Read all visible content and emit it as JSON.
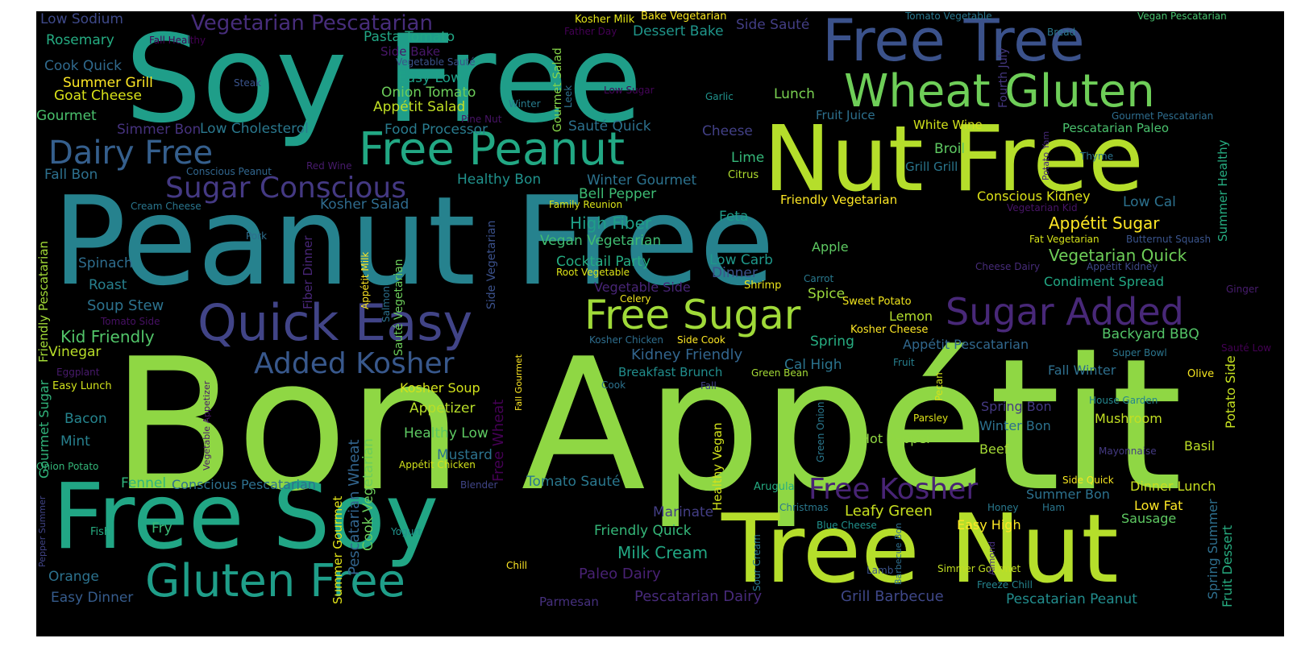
{
  "words": [
    {
      "text": "Bon Appétit",
      "color": "#8fd744"
    },
    {
      "text": "Peanut Free",
      "color": "#26828e"
    },
    {
      "text": "Soy Free",
      "color": "#1f9e89"
    },
    {
      "text": "Nut Free",
      "color": "#b5de2b"
    },
    {
      "text": "Tree Nut",
      "color": "#b5de2b"
    },
    {
      "text": "Free Soy",
      "color": "#21a685"
    },
    {
      "text": "Free Tree",
      "color": "#3b528b"
    },
    {
      "text": "Wheat Gluten",
      "color": "#6ece58"
    },
    {
      "text": "Free Peanut",
      "color": "#22a884"
    },
    {
      "text": "Quick Easy",
      "color": "#414487"
    },
    {
      "text": "Gluten Free",
      "color": "#1f9e89"
    },
    {
      "text": "Free Sugar",
      "color": "#a0da39"
    },
    {
      "text": "Sugar Added",
      "color": "#482878"
    },
    {
      "text": "Dairy Free",
      "color": "#355f8d"
    },
    {
      "text": "Sugar Conscious",
      "color": "#443983"
    },
    {
      "text": "Added Kosher",
      "color": "#38588c"
    },
    {
      "text": "Free Kosher",
      "color": "#482475"
    },
    {
      "text": "Vegetarian Pescatarian",
      "color": "#472d7b"
    },
    {
      "text": "Low Sodium",
      "color": "#3e4989"
    },
    {
      "text": "Rosemary",
      "color": "#25ac82"
    },
    {
      "text": "Fall Healthy",
      "color": "#440154"
    },
    {
      "text": "Cook Quick",
      "color": "#306a8e"
    },
    {
      "text": "Summer Grill",
      "color": "#fde725"
    },
    {
      "text": "Goat Cheese",
      "color": "#d8e219"
    },
    {
      "text": "Gourmet",
      "color": "#4ac16d"
    },
    {
      "text": "Steak",
      "color": "#3a548c"
    },
    {
      "text": "Simmer Bon",
      "color": "#46327e"
    },
    {
      "text": "Low Cholesterol",
      "color": "#2a788e"
    },
    {
      "text": "Fall Bon",
      "color": "#2d708e"
    },
    {
      "text": "Conscious Peanut",
      "color": "#31668e"
    },
    {
      "text": "Red Wine",
      "color": "#481b6d"
    },
    {
      "text": "Cream Cheese",
      "color": "#2a768e"
    },
    {
      "text": "Pork",
      "color": "#2e6e8e"
    },
    {
      "text": "Spinach",
      "color": "#2e6d8e"
    },
    {
      "text": "Roast",
      "color": "#27808e"
    },
    {
      "text": "Soup Stew",
      "color": "#2c728e"
    },
    {
      "text": "Tomato Side",
      "color": "#471164"
    },
    {
      "text": "Kid Friendly",
      "color": "#52c569"
    },
    {
      "text": "Vinegar",
      "color": "#b8de29"
    },
    {
      "text": "Eggplant",
      "color": "#481a6c"
    },
    {
      "text": "Easy Lunch",
      "color": "#d0e11c"
    },
    {
      "text": "Bacon",
      "color": "#25848e"
    },
    {
      "text": "Mint",
      "color": "#27808e"
    },
    {
      "text": "Onion Potato",
      "color": "#34b679"
    },
    {
      "text": "Fennel",
      "color": "#2fb47c"
    },
    {
      "text": "Conscious Pescatarian",
      "color": "#2d708e"
    },
    {
      "text": "Fish",
      "color": "#27ad81"
    },
    {
      "text": "Fry",
      "color": "#3aba76"
    },
    {
      "text": "Orange",
      "color": "#2c728e"
    },
    {
      "text": "Easy Dinner",
      "color": "#365c8d"
    },
    {
      "text": "Pasta Tomato",
      "color": "#21a685"
    },
    {
      "text": "Side Bake",
      "color": "#481769"
    },
    {
      "text": "Vegetable Sauté",
      "color": "#3b528b"
    },
    {
      "text": "Easy Low",
      "color": "#1fa188"
    },
    {
      "text": "Onion Tomato",
      "color": "#6ccd5a"
    },
    {
      "text": "Appétit Salad",
      "color": "#c0df25"
    },
    {
      "text": "Pine Nut",
      "color": "#481467"
    },
    {
      "text": "Food Processor",
      "color": "#297b8e"
    },
    {
      "text": "Healthy Bon",
      "color": "#20928c"
    },
    {
      "text": "Kosher Salad",
      "color": "#2f6b8e"
    },
    {
      "text": "Family Reunion",
      "color": "#dae319"
    },
    {
      "text": "Kosher Milk",
      "color": "#e2e418"
    },
    {
      "text": "Father Day",
      "color": "#440154"
    },
    {
      "text": "Bake Vegetarian",
      "color": "#f8e621"
    },
    {
      "text": "Dessert Bake",
      "color": "#1f968b"
    },
    {
      "text": "Side Sauté",
      "color": "#433e85"
    },
    {
      "text": "Winter",
      "color": "#287d8e"
    },
    {
      "text": "Low Sugar",
      "color": "#450559"
    },
    {
      "text": "Garlic",
      "color": "#20928c"
    },
    {
      "text": "Lunch",
      "color": "#7ad151"
    },
    {
      "text": "Sauté Quick",
      "color": "#2c718e"
    },
    {
      "text": "Cheese",
      "color": "#424086"
    },
    {
      "text": "Lime",
      "color": "#35b779"
    },
    {
      "text": "Citrus",
      "color": "#b0dd2f"
    },
    {
      "text": "Winter Gourmet",
      "color": "#2c728e"
    },
    {
      "text": "Bell Pepper",
      "color": "#3dbc74"
    },
    {
      "text": "High Fiber",
      "color": "#1f9f88"
    },
    {
      "text": "Vegan Vegetarian",
      "color": "#40bd72"
    },
    {
      "text": "Cocktail Party",
      "color": "#25ac82"
    },
    {
      "text": "Root Vegetable",
      "color": "#dde318"
    },
    {
      "text": "Vegetable Side",
      "color": "#482576"
    },
    {
      "text": "Celery",
      "color": "#f1e51d"
    },
    {
      "text": "Feta",
      "color": "#1e9c89"
    },
    {
      "text": "Low Carb",
      "color": "#1f988b"
    },
    {
      "text": "Dinner",
      "color": "#3b528b"
    },
    {
      "text": "Shrimp",
      "color": "#ece51b"
    },
    {
      "text": "Carrot",
      "color": "#29798e"
    },
    {
      "text": "Spice",
      "color": "#9bd93c"
    },
    {
      "text": "Sweet Potato",
      "color": "#f1e51d"
    },
    {
      "text": "Lemon",
      "color": "#b2dd2d"
    },
    {
      "text": "Kosher Cheese",
      "color": "#fde725"
    },
    {
      "text": "Kosher Chicken",
      "color": "#2e6e8e"
    },
    {
      "text": "Side Cook",
      "color": "#fde725"
    },
    {
      "text": "Spring",
      "color": "#27ad81"
    },
    {
      "text": "Kidney Friendly",
      "color": "#32658e"
    },
    {
      "text": "Cal High",
      "color": "#2b748e"
    },
    {
      "text": "Breakfast Brunch",
      "color": "#218e8d"
    },
    {
      "text": "Green Bean",
      "color": "#a5db36"
    },
    {
      "text": "Cook",
      "color": "#2c728e"
    },
    {
      "text": "Fall",
      "color": "#424086"
    },
    {
      "text": "Kosher Soup",
      "color": "#d2e21b"
    },
    {
      "text": "Appetizer",
      "color": "#b8de29"
    },
    {
      "text": "Healthy Low",
      "color": "#5ec962"
    },
    {
      "text": "Mustard",
      "color": "#2c728e"
    },
    {
      "text": "Appétit Chicken",
      "color": "#d2e21b"
    },
    {
      "text": "Blender",
      "color": "#404588"
    },
    {
      "text": "Tomato Sauté",
      "color": "#2a788e"
    },
    {
      "text": "Marinate",
      "color": "#433e85"
    },
    {
      "text": "Friendly Quick",
      "color": "#35b779"
    },
    {
      "text": "Milk Cream",
      "color": "#22a884"
    },
    {
      "text": "Paleo Dairy",
      "color": "#482173"
    },
    {
      "text": "Yogurt",
      "color": "#20928c"
    },
    {
      "text": "Chill",
      "color": "#fde725"
    },
    {
      "text": "Parmesan",
      "color": "#46307e"
    },
    {
      "text": "Pescatarian Dairy",
      "color": "#472a7a"
    },
    {
      "text": "Grill Barbecue",
      "color": "#3f4889"
    },
    {
      "text": "Fruit Juice",
      "color": "#2d708e"
    },
    {
      "text": "White Wine",
      "color": "#d2e21b"
    },
    {
      "text": "Pescatarian Paleo",
      "color": "#4ac16d"
    },
    {
      "text": "Broil",
      "color": "#5ec962"
    },
    {
      "text": "Grill Grill",
      "color": "#2a768e"
    },
    {
      "text": "Thyme",
      "color": "#2b748e"
    },
    {
      "text": "Friendly Vegetarian",
      "color": "#fde725"
    },
    {
      "text": "Conscious Kidney",
      "color": "#dde318"
    },
    {
      "text": "Low Cal",
      "color": "#2c718e"
    },
    {
      "text": "Vegetarian Kid",
      "color": "#481567"
    },
    {
      "text": "Appétit Sugar",
      "color": "#fde725"
    },
    {
      "text": "Fat Vegetarian",
      "color": "#d5e21a"
    },
    {
      "text": "Butternut Squash",
      "color": "#3a548c"
    },
    {
      "text": "Apple",
      "color": "#5ec962"
    },
    {
      "text": "Vegetarian Quick",
      "color": "#6ece58"
    },
    {
      "text": "Appétit Kidney",
      "color": "#3e4a89"
    },
    {
      "text": "Cheese Dairy",
      "color": "#472c7a"
    },
    {
      "text": "Condiment Spread",
      "color": "#22a884"
    },
    {
      "text": "Ginger",
      "color": "#481d6f"
    },
    {
      "text": "Backyard BBQ",
      "color": "#54c568"
    },
    {
      "text": "Appétit Pescatarian",
      "color": "#31688e"
    },
    {
      "text": "Super Bowl",
      "color": "#2b758e"
    },
    {
      "text": "Sauté Low",
      "color": "#440154"
    },
    {
      "text": "Fruit",
      "color": "#277f8e"
    },
    {
      "text": "Fall Winter",
      "color": "#2e6f8e"
    },
    {
      "text": "Olive",
      "color": "#f6e620"
    },
    {
      "text": "Spring Bon",
      "color": "#443983"
    },
    {
      "text": "House Garden",
      "color": "#24868e"
    },
    {
      "text": "Winter Bon",
      "color": "#2c718e"
    },
    {
      "text": "Mushroom",
      "color": "#c2df23"
    },
    {
      "text": "Parsley",
      "color": "#dde318"
    },
    {
      "text": "Hot Pepper",
      "color": "#90d743"
    },
    {
      "text": "Beef",
      "color": "#a5db36"
    },
    {
      "text": "Basil",
      "color": "#bddf26"
    },
    {
      "text": "Mayonnaise",
      "color": "#443a83"
    },
    {
      "text": "Side Quick",
      "color": "#f6e620"
    },
    {
      "text": "Dinner Lunch",
      "color": "#c8e020"
    },
    {
      "text": "Summer Bon",
      "color": "#2c718e"
    },
    {
      "text": "Arugula",
      "color": "#25ac82"
    },
    {
      "text": "Leafy Green",
      "color": "#c8e020"
    },
    {
      "text": "Low Fat",
      "color": "#fde725"
    },
    {
      "text": "Christmas",
      "color": "#2a788e"
    },
    {
      "text": "Honey",
      "color": "#29798e"
    },
    {
      "text": "Ham",
      "color": "#2a768e"
    },
    {
      "text": "Sausage",
      "color": "#5ec962"
    },
    {
      "text": "Easy High",
      "color": "#fde725"
    },
    {
      "text": "Blue Cheese",
      "color": "#21918c"
    },
    {
      "text": "Lamb",
      "color": "#3b528b"
    },
    {
      "text": "Simmer Gourmet",
      "color": "#c2df23"
    },
    {
      "text": "Freeze Chill",
      "color": "#25848e"
    },
    {
      "text": "Pescatarian Peanut",
      "color": "#228d8d"
    },
    {
      "text": "Tomato Vegetable",
      "color": "#2a788e"
    },
    {
      "text": "Vegan Pescatarian",
      "color": "#48c16e"
    },
    {
      "text": "Bread",
      "color": "#2a788e"
    },
    {
      "text": "Gourmet Pescatarian",
      "color": "#2e6d8e"
    },
    {
      "text": "Gourmet Salad",
      "color": "#86d549",
      "vertical": true
    },
    {
      "text": "Leek",
      "color": "#2d708e",
      "vertical": true
    },
    {
      "text": "Fourth July",
      "color": "#453781",
      "vertical": true
    },
    {
      "text": "Potato Yam",
      "color": "#472a7a",
      "vertical": true
    },
    {
      "text": "Summer Healthy",
      "color": "#26ad81",
      "vertical": true
    },
    {
      "text": "Potato Side",
      "color": "#c5e021",
      "vertical": true
    },
    {
      "text": "Spring Summer",
      "color": "#2e6f8e",
      "vertical": true
    },
    {
      "text": "Fruit Dessert",
      "color": "#27ad81",
      "vertical": true
    },
    {
      "text": "Gourmet Sugar",
      "color": "#31b57b",
      "vertical": true
    },
    {
      "text": "Friendly Pescatarian",
      "color": "#a2da37",
      "vertical": true
    },
    {
      "text": "Vegetable Appetizer",
      "color": "#481769",
      "vertical": true
    },
    {
      "text": "Pepper Summer",
      "color": "#414487",
      "vertical": true
    },
    {
      "text": "Fiber Dinner",
      "color": "#482677",
      "vertical": true
    },
    {
      "text": "Appétit Milk",
      "color": "#fde725",
      "vertical": true
    },
    {
      "text": "Salmon",
      "color": "#2c718e",
      "vertical": true
    },
    {
      "text": "Sauté Vegetarian",
      "color": "#6ccd5a",
      "vertical": true
    },
    {
      "text": "Side Vegetarian",
      "color": "#3b518b",
      "vertical": true
    },
    {
      "text": "Pescatarian Wheat",
      "color": "#32658e",
      "vertical": true
    },
    {
      "text": "Cook Vegetarian",
      "color": "#6ccd5a",
      "vertical": true
    },
    {
      "text": "Summer Gourmet",
      "color": "#e2e418",
      "vertical": true
    },
    {
      "text": "Free Wheat",
      "color": "#440154",
      "vertical": true
    },
    {
      "text": "Fall Gourmet",
      "color": "#fde725",
      "vertical": true
    },
    {
      "text": "Healthy Vegan",
      "color": "#d2e21b",
      "vertical": true
    },
    {
      "text": "Pecan",
      "color": "#d5e21a",
      "vertical": true
    },
    {
      "text": "Green Onion",
      "color": "#2a788e",
      "vertical": true
    },
    {
      "text": "Sour Cream",
      "color": "#2a788e",
      "vertical": true
    },
    {
      "text": "Barbecue Bon",
      "color": "#2e6e8e",
      "vertical": true
    },
    {
      "text": "Almond",
      "color": "#46307e",
      "vertical": true
    }
  ]
}
